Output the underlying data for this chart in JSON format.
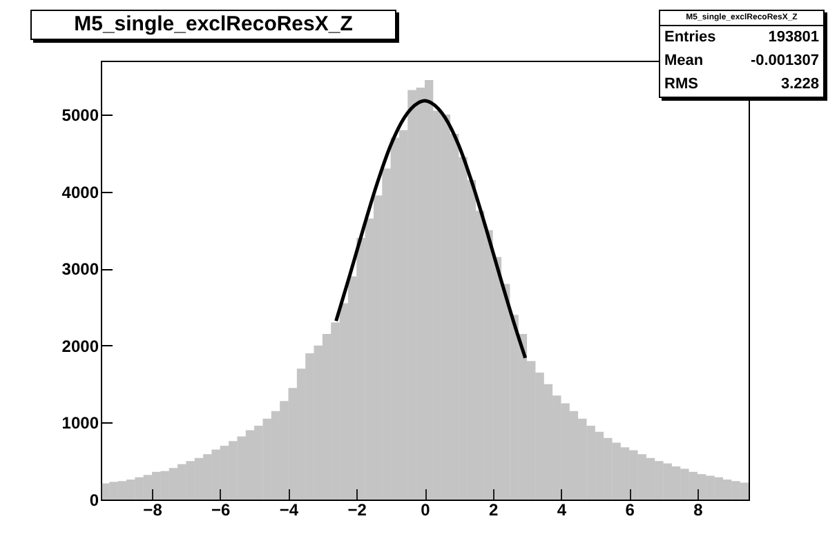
{
  "chart_data": {
    "type": "histogram",
    "title": "M5_single_exclRecoResX_Z",
    "bins": [
      -9.5,
      -9.25,
      -9,
      -8.75,
      -8.5,
      -8.25,
      -8,
      -7.75,
      -7.5,
      -7.25,
      -7,
      -6.75,
      -6.5,
      -6.25,
      -6,
      -5.75,
      -5.5,
      -5.25,
      -5,
      -4.75,
      -4.5,
      -4.25,
      -4,
      -3.75,
      -3.5,
      -3.25,
      -3,
      -2.75,
      -2.5,
      -2.25,
      -2,
      -1.75,
      -1.5,
      -1.25,
      -1,
      -0.75,
      -0.5,
      -0.25,
      0,
      0.25,
      0.5,
      0.75,
      1,
      1.25,
      1.5,
      1.75,
      2,
      2.25,
      2.5,
      2.75,
      3,
      3.25,
      3.5,
      3.75,
      4,
      4.25,
      4.5,
      4.75,
      5,
      5.25,
      5.5,
      5.75,
      6,
      6.25,
      6.5,
      6.75,
      7,
      7.25,
      7.5,
      7.75,
      8,
      8.25,
      8.5,
      8.75,
      9,
      9.25,
      9.5
    ],
    "values": [
      210,
      230,
      240,
      260,
      290,
      320,
      360,
      370,
      410,
      460,
      500,
      540,
      590,
      650,
      700,
      760,
      820,
      900,
      960,
      1050,
      1150,
      1280,
      1450,
      1700,
      1900,
      2000,
      2150,
      2300,
      2550,
      2900,
      3400,
      3650,
      3950,
      4300,
      4700,
      4800,
      5320,
      5350,
      5450,
      5050,
      5000,
      4750,
      4450,
      4150,
      3750,
      3500,
      3150,
      2800,
      2400,
      2150,
      1800,
      1650,
      1500,
      1350,
      1250,
      1150,
      1050,
      960,
      880,
      800,
      740,
      680,
      640,
      590,
      540,
      500,
      470,
      430,
      400,
      360,
      330,
      310,
      290,
      260,
      240,
      220
    ],
    "color": "#555555",
    "series": [
      {
        "type": "line",
        "color": "#000000",
        "x": [
          -2.6,
          -2.2,
          -1.8,
          -1.4,
          -1.0,
          -0.6,
          -0.2,
          0,
          0.2,
          0.6,
          1.0,
          1.4,
          1.8,
          2.2,
          2.6,
          2.95
        ],
        "values": [
          2320,
          2910,
          3520,
          4100,
          4600,
          4960,
          5150,
          5180,
          5150,
          4960,
          4600,
          4100,
          3520,
          2910,
          2320,
          1840
        ]
      }
    ],
    "xlim": [
      -9.5,
      9.5
    ],
    "xticks": [
      -8,
      -6,
      -4,
      -2,
      0,
      2,
      4,
      6,
      8
    ],
    "ylim": [
      0,
      5700
    ],
    "yticks": [
      0,
      1000,
      2000,
      3000,
      4000,
      5000
    ],
    "annotations": [
      "M5_single_exclRecoResX_Z",
      "Entries 193801",
      "Mean -0.001307",
      "RMS 3.228"
    ]
  }
}
